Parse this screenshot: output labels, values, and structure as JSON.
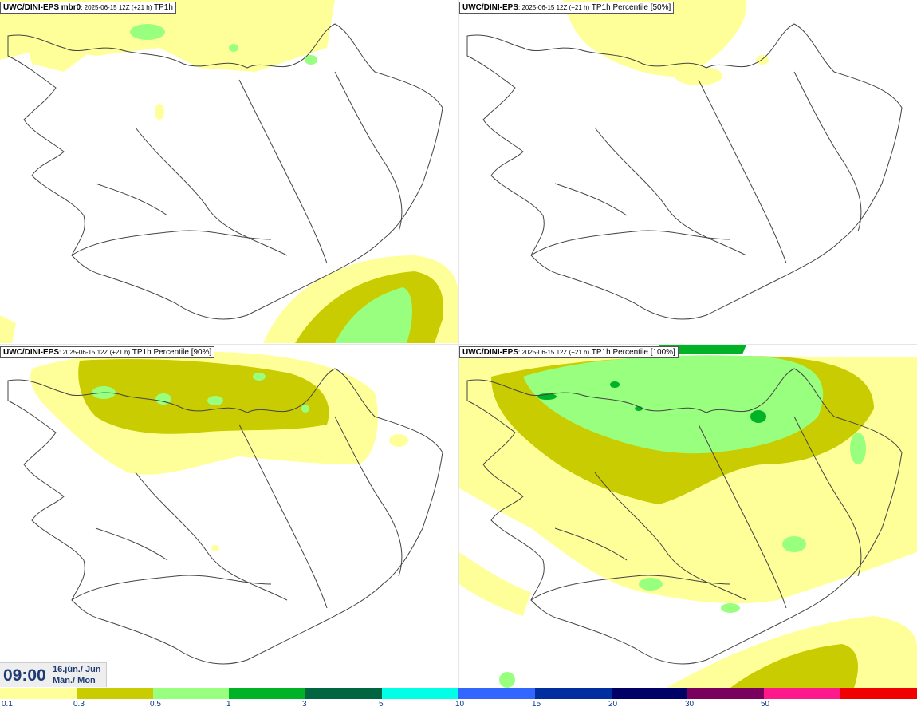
{
  "panels": [
    {
      "model": "UWC/DINI-EPS",
      "member": " mbr0",
      "run": ": 2025-06-15 12Z (+21 h)",
      "field": " TP1h"
    },
    {
      "model": "UWC/DINI-EPS",
      "member": "",
      "run": ": 2025-06-15 12Z (+21 h)",
      "field": " TP1h Percentile [50%]"
    },
    {
      "model": "UWC/DINI-EPS",
      "member": "",
      "run": ": 2025-06-15 12Z (+21 h)",
      "field": " TP1h Percentile [90%]"
    },
    {
      "model": "UWC/DINI-EPS",
      "member": "",
      "run": ": 2025-06-15 12Z (+21 h)",
      "field": " TP1h Percentile [100%]"
    }
  ],
  "valid_time": {
    "time": "09:00",
    "date": "16.jún./ Jun",
    "weekday": "Mán./ Mon"
  },
  "legend": {
    "labels": [
      "0.1",
      "0.3",
      "0.5",
      "1",
      "3",
      "5",
      "10",
      "15",
      "20",
      "30",
      "50"
    ],
    "colors": [
      "#ffff99",
      "#c8cc00",
      "#99ff7f",
      "#00b226",
      "#006642",
      "#00ffe6",
      "#3366ff",
      "#002e9e",
      "#000066",
      "#7a005e",
      "#ff1a8c",
      "#f00000"
    ]
  },
  "precip_colors": {
    "light": "#ffff99",
    "mid": "#c8cc00",
    "high": "#99ff7f",
    "heavy": "#00b226"
  }
}
